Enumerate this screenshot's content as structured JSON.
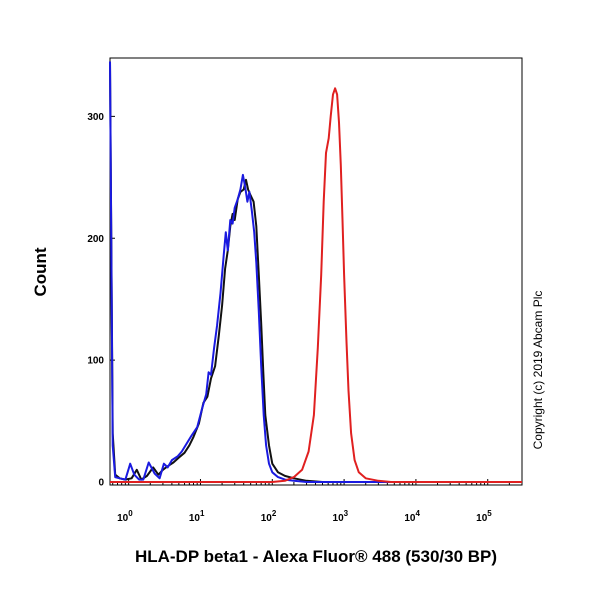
{
  "chart_data": {
    "type": "line",
    "xlabel": "HLA-DP beta1 - Alexa Fluor® 488 (530/30 BP)",
    "ylabel": "Count",
    "x_scale": "log",
    "xlim": [
      0.55,
      300000
    ],
    "ylim": [
      0,
      350
    ],
    "x_ticks": [
      {
        "value": 1,
        "base": "10",
        "exp": "0"
      },
      {
        "value": 10,
        "base": "10",
        "exp": "1"
      },
      {
        "value": 100,
        "base": "10",
        "exp": "2"
      },
      {
        "value": 1000,
        "base": "10",
        "exp": "3"
      },
      {
        "value": 10000,
        "base": "10",
        "exp": "4"
      },
      {
        "value": 100000,
        "base": "10",
        "exp": "5"
      }
    ],
    "y_ticks": [
      0,
      100,
      200,
      300
    ],
    "annotation": "Copyright (c) 2019 Abcam Plc",
    "series": [
      {
        "color": "#111111",
        "points": [
          [
            0.55,
            345
          ],
          [
            0.6,
            40
          ],
          [
            0.65,
            6
          ],
          [
            0.75,
            3
          ],
          [
            0.9,
            2
          ],
          [
            1.1,
            3
          ],
          [
            1.3,
            10
          ],
          [
            1.5,
            2
          ],
          [
            1.8,
            5
          ],
          [
            2.2,
            12
          ],
          [
            2.6,
            6
          ],
          [
            3,
            10
          ],
          [
            3.5,
            13
          ],
          [
            4.2,
            16
          ],
          [
            5,
            20
          ],
          [
            6,
            24
          ],
          [
            7,
            30
          ],
          [
            8,
            37
          ],
          [
            9.5,
            48
          ],
          [
            11,
            65
          ],
          [
            12.5,
            70
          ],
          [
            14,
            85
          ],
          [
            16,
            95
          ],
          [
            18,
            120
          ],
          [
            20,
            145
          ],
          [
            22,
            175
          ],
          [
            24,
            190
          ],
          [
            26,
            210
          ],
          [
            28,
            220
          ],
          [
            30,
            215
          ],
          [
            33,
            232
          ],
          [
            36,
            238
          ],
          [
            40,
            240
          ],
          [
            43,
            248
          ],
          [
            46,
            240
          ],
          [
            50,
            235
          ],
          [
            55,
            230
          ],
          [
            60,
            210
          ],
          [
            65,
            170
          ],
          [
            70,
            130
          ],
          [
            75,
            90
          ],
          [
            80,
            55
          ],
          [
            90,
            30
          ],
          [
            100,
            15
          ],
          [
            120,
            8
          ],
          [
            150,
            5
          ],
          [
            200,
            3
          ],
          [
            300,
            1
          ],
          [
            500,
            0
          ],
          [
            300000,
            0
          ]
        ]
      },
      {
        "color": "#1a1ae0",
        "points": [
          [
            0.55,
            345
          ],
          [
            0.6,
            30
          ],
          [
            0.65,
            4
          ],
          [
            0.75,
            3
          ],
          [
            0.9,
            2
          ],
          [
            1.05,
            15
          ],
          [
            1.2,
            6
          ],
          [
            1.4,
            2
          ],
          [
            1.6,
            2
          ],
          [
            1.9,
            16
          ],
          [
            2.3,
            7
          ],
          [
            2.7,
            3
          ],
          [
            3.1,
            15
          ],
          [
            3.5,
            12
          ],
          [
            4,
            18
          ],
          [
            4.8,
            21
          ],
          [
            5.5,
            25
          ],
          [
            6.5,
            32
          ],
          [
            7.5,
            38
          ],
          [
            9,
            45
          ],
          [
            10.5,
            60
          ],
          [
            12,
            72
          ],
          [
            13,
            90
          ],
          [
            14,
            88
          ],
          [
            15.5,
            110
          ],
          [
            17,
            128
          ],
          [
            19,
            155
          ],
          [
            21,
            185
          ],
          [
            22.5,
            205
          ],
          [
            24,
            190
          ],
          [
            26,
            215
          ],
          [
            28,
            212
          ],
          [
            30,
            225
          ],
          [
            33,
            232
          ],
          [
            36,
            240
          ],
          [
            39,
            252
          ],
          [
            42,
            242
          ],
          [
            45,
            230
          ],
          [
            48,
            238
          ],
          [
            52,
            222
          ],
          [
            56,
            205
          ],
          [
            60,
            180
          ],
          [
            65,
            140
          ],
          [
            70,
            95
          ],
          [
            76,
            55
          ],
          [
            82,
            30
          ],
          [
            90,
            15
          ],
          [
            100,
            8
          ],
          [
            120,
            4
          ],
          [
            150,
            2
          ],
          [
            200,
            1
          ],
          [
            300,
            0
          ],
          [
            300000,
            0
          ]
        ]
      },
      {
        "color": "#e02020",
        "points": [
          [
            0.55,
            0
          ],
          [
            100,
            0
          ],
          [
            150,
            1
          ],
          [
            200,
            4
          ],
          [
            260,
            10
          ],
          [
            320,
            25
          ],
          [
            380,
            55
          ],
          [
            430,
            110
          ],
          [
            480,
            170
          ],
          [
            520,
            230
          ],
          [
            560,
            270
          ],
          [
            610,
            282
          ],
          [
            650,
            300
          ],
          [
            700,
            318
          ],
          [
            750,
            323
          ],
          [
            800,
            318
          ],
          [
            850,
            295
          ],
          [
            900,
            260
          ],
          [
            950,
            215
          ],
          [
            1000,
            170
          ],
          [
            1080,
            115
          ],
          [
            1150,
            75
          ],
          [
            1250,
            40
          ],
          [
            1400,
            18
          ],
          [
            1600,
            8
          ],
          [
            2000,
            3
          ],
          [
            3000,
            1
          ],
          [
            4500,
            0
          ],
          [
            300000,
            0
          ]
        ]
      }
    ]
  }
}
